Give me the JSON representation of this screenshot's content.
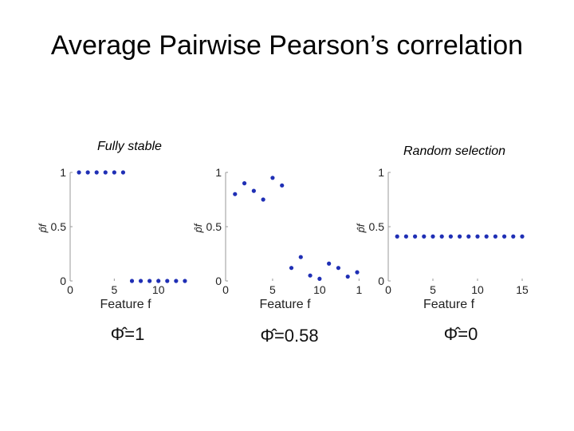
{
  "title": "Average Pairwise Pearson’s correlation",
  "panel_captions": [
    "Fully stable",
    "",
    "Random selection"
  ],
  "chart_data": [
    {
      "type": "scatter",
      "title": "",
      "xlabel": "Feature f",
      "ylabel": "p̂f",
      "xlim": [
        0,
        14
      ],
      "ylim": [
        0,
        1
      ],
      "x_ticks": [
        "0",
        "5",
        "10"
      ],
      "y_ticks": [
        "0",
        "0.5",
        "1"
      ],
      "marker_color": "#1f2fb5",
      "points": [
        {
          "x": 1,
          "y": 1
        },
        {
          "x": 2,
          "y": 1
        },
        {
          "x": 3,
          "y": 1
        },
        {
          "x": 4,
          "y": 1
        },
        {
          "x": 5,
          "y": 1
        },
        {
          "x": 6,
          "y": 1
        },
        {
          "x": 7,
          "y": 0
        },
        {
          "x": 8,
          "y": 0
        },
        {
          "x": 9,
          "y": 0
        },
        {
          "x": 10,
          "y": 0
        },
        {
          "x": 11,
          "y": 0
        },
        {
          "x": 12,
          "y": 0
        },
        {
          "x": 13,
          "y": 0
        }
      ],
      "stat_label": "Φ̂=1"
    },
    {
      "type": "scatter",
      "title": "",
      "xlabel": "Feature f",
      "ylabel": "p̂f",
      "xlim": [
        0,
        14
      ],
      "ylim": [
        0,
        1
      ],
      "x_ticks": [
        "0",
        "5",
        "10",
        "1"
      ],
      "y_ticks": [
        "0",
        "0.5",
        "1"
      ],
      "marker_color": "#1f2fb5",
      "points": [
        {
          "x": 1,
          "y": 0.8
        },
        {
          "x": 2,
          "y": 0.9
        },
        {
          "x": 3,
          "y": 0.83
        },
        {
          "x": 4,
          "y": 0.75
        },
        {
          "x": 5,
          "y": 0.95
        },
        {
          "x": 6,
          "y": 0.88
        },
        {
          "x": 7,
          "y": 0.12
        },
        {
          "x": 8,
          "y": 0.22
        },
        {
          "x": 9,
          "y": 0.05
        },
        {
          "x": 10,
          "y": 0.02
        },
        {
          "x": 11,
          "y": 0.16
        },
        {
          "x": 12,
          "y": 0.12
        },
        {
          "x": 13,
          "y": 0.04
        },
        {
          "x": 14,
          "y": 0.08
        }
      ],
      "stat_label": "Φ̂=0.58"
    },
    {
      "type": "scatter",
      "title": "",
      "xlabel": "Feature f",
      "ylabel": "p̂f",
      "xlim": [
        0,
        15
      ],
      "ylim": [
        0,
        1
      ],
      "x_ticks": [
        "0",
        "5",
        "10",
        "15"
      ],
      "y_ticks": [
        "0",
        "0.5",
        "1"
      ],
      "marker_color": "#1f2fb5",
      "points": [
        {
          "x": 1,
          "y": 0.41
        },
        {
          "x": 2,
          "y": 0.41
        },
        {
          "x": 3,
          "y": 0.41
        },
        {
          "x": 4,
          "y": 0.41
        },
        {
          "x": 5,
          "y": 0.41
        },
        {
          "x": 6,
          "y": 0.41
        },
        {
          "x": 7,
          "y": 0.41
        },
        {
          "x": 8,
          "y": 0.41
        },
        {
          "x": 9,
          "y": 0.41
        },
        {
          "x": 10,
          "y": 0.41
        },
        {
          "x": 11,
          "y": 0.41
        },
        {
          "x": 12,
          "y": 0.41
        },
        {
          "x": 13,
          "y": 0.41
        },
        {
          "x": 14,
          "y": 0.41
        },
        {
          "x": 15,
          "y": 0.41
        }
      ],
      "stat_label": "Φ̂=0"
    }
  ]
}
